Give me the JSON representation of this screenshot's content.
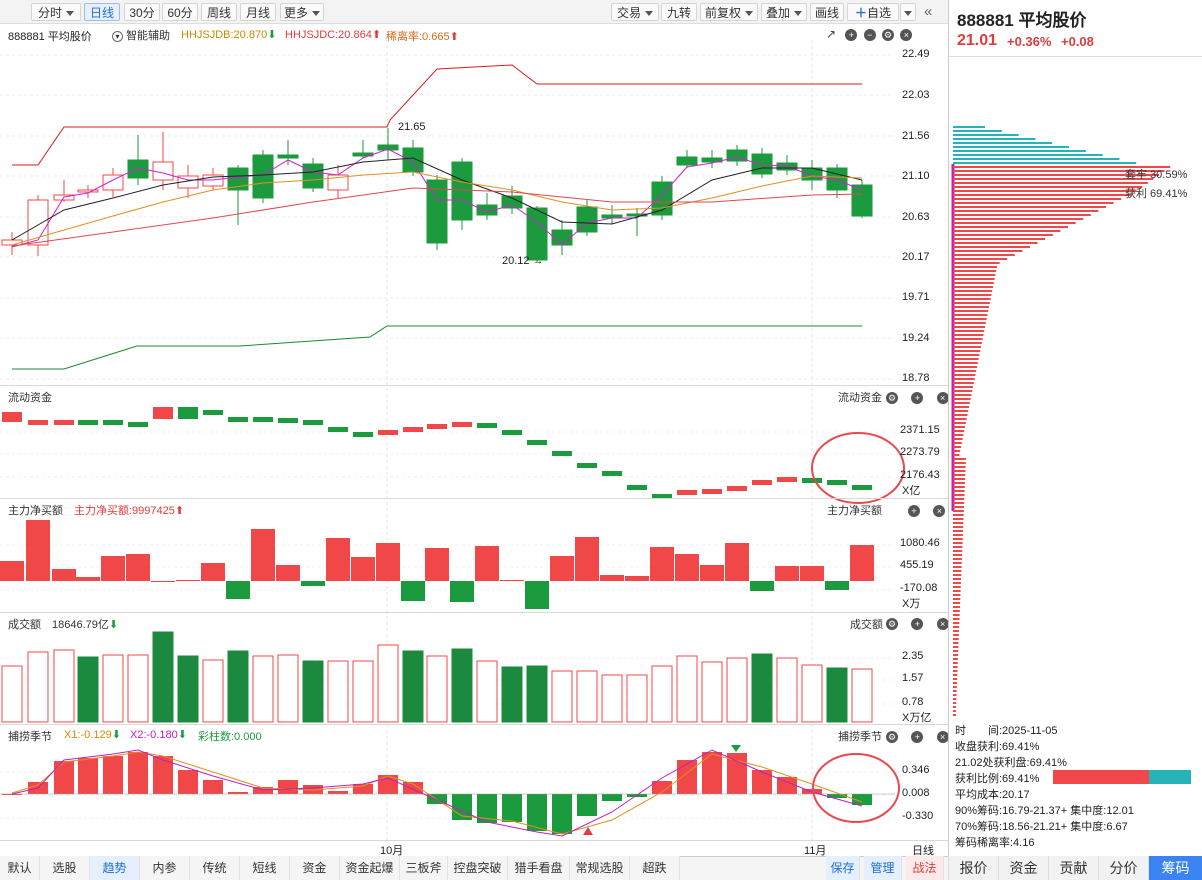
{
  "toolbar": {
    "left_tabs": [
      "分时",
      "日线",
      "30分",
      "60分",
      "周线",
      "月线",
      "更多"
    ],
    "right_tabs": [
      "交易",
      "九转",
      "前复权",
      "叠加",
      "画线",
      "自选"
    ]
  },
  "header": {
    "code_name": "888881 平均股价",
    "assist": "智能辅助",
    "hhjsjdb": "HHJSJDB:20.870",
    "hhjsjdc": "HHJSJDC:20.864",
    "ratio": "稀离率:0.665"
  },
  "price_axis": [
    "22.49",
    "22.03",
    "21.56",
    "21.10",
    "20.63",
    "20.17",
    "19.71",
    "19.24",
    "18.78"
  ],
  "annotations": {
    "high": "21.65",
    "low": "20.12"
  },
  "flow": {
    "title": "流动资金",
    "right_title": "流动资金",
    "axis": [
      "2371.15",
      "2273.79",
      "2176.43"
    ],
    "unit": "X亿"
  },
  "main_net": {
    "title": "主力净买额",
    "value": "主力净买额:9997425",
    "right_title": "主力净买额",
    "axis": [
      "1080.46",
      "455.19",
      "-170.08"
    ],
    "unit": "X万"
  },
  "volume": {
    "title": "成交额",
    "value": "18646.79亿",
    "right_title": "成交额",
    "axis": [
      "2.35",
      "1.57",
      "0.78"
    ],
    "unit": "X万亿"
  },
  "season": {
    "title": "捕捞季节",
    "x1": "X1:-0.129",
    "x2": "X2:-0.180",
    "bar": "彩柱数:0.000",
    "right_title": "捕捞季节",
    "axis": [
      "0.346",
      "0.008",
      "-0.330"
    ]
  },
  "date_axis": [
    "10月",
    "11月",
    "日线"
  ],
  "bottom_tabs": [
    "默认",
    "选股",
    "趋势",
    "内参",
    "传统",
    "短线",
    "资金",
    "资金起爆",
    "三板斧",
    "控盘突破",
    "猎手看盘",
    "常规选股",
    "超跌"
  ],
  "bottom_actions": [
    "保存",
    "管理",
    "战法"
  ],
  "right_panel": {
    "title": "888881 平均股价",
    "price": "21.01",
    "pct": "+0.36%",
    "chg": "+0.08",
    "trapped": "套牢 30.59%",
    "profit": "获利 69.41%",
    "info": [
      "时　　间:2025-11-05",
      "收盘获利:69.41%",
      "21.02处获利盘:69.41%",
      "获利比例:69.41%",
      "平均成本:20.17",
      "90%筹码:16.79-21.37+ 集中度:12.01",
      "70%筹码:18.56-21.21+ 集中度:6.67",
      "筹码稀离率:4.16"
    ],
    "tabs": [
      "报价",
      "资金",
      "贡献",
      "分价",
      "筹码"
    ]
  },
  "colors": {
    "up": "#f04848",
    "down": "#1c9a3e",
    "blue": "#1e6fd9",
    "cyan": "#25b3b8"
  }
}
